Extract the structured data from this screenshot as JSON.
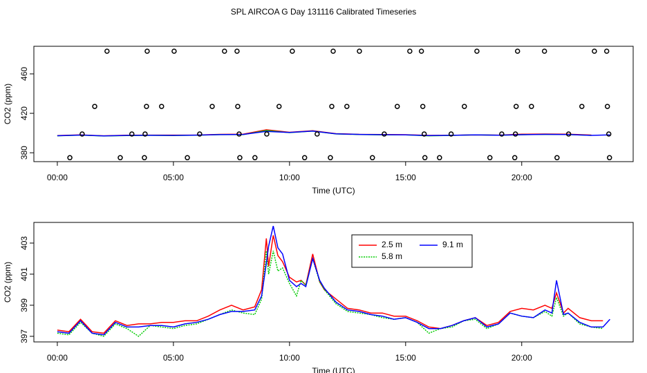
{
  "title": "SPL AIRCOA G  Day 131116  Calibrated Timeseries",
  "chart_data": [
    {
      "type": "scatter",
      "xlabel": "Time (UTC)",
      "ylabel": "CO2 (ppm)",
      "xlim": [
        -1.01,
        24.8
      ],
      "ylim": [
        371,
        488
      ],
      "xticks": [
        {
          "value": 0,
          "label": "00:00"
        },
        {
          "value": 5,
          "label": "05:00"
        },
        {
          "value": 10,
          "label": "10:00"
        },
        {
          "value": 15,
          "label": "15:00"
        },
        {
          "value": 20,
          "label": "20:00"
        }
      ],
      "yticks": [
        380,
        420,
        460
      ],
      "points": {
        "x": [
          2.14,
          3.87,
          5.03,
          7.2,
          7.74,
          10.12,
          11.88,
          13.01,
          15.18,
          15.68,
          18.07,
          19.82,
          20.98,
          23.13,
          23.66,
          1.61,
          3.84,
          4.49,
          6.67,
          7.77,
          9.55,
          11.82,
          12.47,
          14.64,
          15.74,
          17.53,
          19.76,
          20.42,
          22.59,
          23.69,
          1.07,
          3.21,
          3.78,
          6.13,
          7.83,
          9.02,
          11.19,
          14.08,
          15.8,
          16.96,
          19.14,
          19.73,
          22.02,
          23.75,
          0.54,
          2.71,
          3.75,
          5.6,
          7.86,
          8.51,
          10.65,
          11.76,
          13.57,
          15.83,
          16.46,
          18.63,
          19.7,
          21.52,
          23.78
        ],
        "y": [
          483,
          483,
          483,
          483,
          483,
          483,
          483,
          483,
          483,
          483,
          483,
          483,
          483,
          483,
          483,
          427,
          427,
          427,
          427,
          427,
          427,
          427,
          427,
          427,
          427,
          427,
          427,
          427,
          427,
          427,
          399,
          399,
          399,
          399,
          399,
          399,
          399,
          399,
          399,
          399,
          399,
          399,
          399,
          399,
          375,
          375,
          375,
          375,
          375,
          375,
          375,
          375,
          375,
          375,
          375,
          375,
          375,
          375,
          375
        ]
      },
      "x": [
        0,
        1,
        2,
        3,
        4,
        5,
        6,
        7,
        8,
        9,
        10,
        11,
        12,
        13,
        14,
        15,
        16,
        17,
        18,
        19,
        20,
        21,
        22,
        23,
        23.8
      ],
      "series": [
        {
          "color": "#ff0000",
          "values": [
            397.4,
            398.1,
            397.2,
            397.8,
            397.9,
            397.9,
            398.0,
            398.7,
            398.9,
            403.3,
            400.8,
            402.3,
            399.4,
            398.7,
            398.5,
            398.3,
            397.6,
            397.7,
            398.2,
            397.9,
            398.8,
            399.0,
            398.8,
            398.0,
            null
          ]
        },
        {
          "color": "#00cc00",
          "values": [
            397.2,
            397.9,
            397.0,
            397.5,
            397.7,
            397.5,
            397.8,
            398.4,
            398.4,
            402.5,
            400.4,
            402.0,
            399.1,
            398.5,
            398.2,
            398.2,
            397.2,
            397.6,
            398.1,
            397.8,
            398.3,
            398.6,
            398.5,
            397.6,
            null
          ]
        },
        {
          "color": "#0000ff",
          "values": [
            397.3,
            398.0,
            397.1,
            397.6,
            397.7,
            397.6,
            397.9,
            398.4,
            398.6,
            401.7,
            400.6,
            402.0,
            399.2,
            398.6,
            398.3,
            398.2,
            397.5,
            397.7,
            398.2,
            397.8,
            398.3,
            398.7,
            398.5,
            397.6,
            398.1
          ]
        }
      ]
    },
    {
      "type": "line",
      "xlabel": "Time (UTC)",
      "ylabel": "CO2 (ppm)",
      "xlim": [
        -1.01,
        24.8
      ],
      "ylim": [
        396.64,
        404.33
      ],
      "xticks": [
        {
          "value": 0,
          "label": "00:00"
        },
        {
          "value": 5,
          "label": "05:00"
        },
        {
          "value": 10,
          "label": "10:00"
        },
        {
          "value": 15,
          "label": "15:00"
        },
        {
          "value": 20,
          "label": "20:00"
        }
      ],
      "yticks": [
        397,
        399,
        401,
        403
      ],
      "legend": "top",
      "x": [
        0,
        0.5,
        1,
        1.5,
        2,
        2.5,
        3,
        3.5,
        4,
        4.5,
        5,
        5.5,
        6,
        6.5,
        7,
        7.5,
        8,
        8.5,
        8.8,
        9,
        9.1,
        9.3,
        9.5,
        9.7,
        10,
        10.3,
        10.5,
        10.7,
        11,
        11.3,
        11.5,
        12,
        12.5,
        13,
        13.5,
        14,
        14.5,
        15,
        15.5,
        16,
        16.5,
        17,
        17.5,
        18,
        18.5,
        19,
        19.5,
        20,
        20.5,
        21,
        21.3,
        21.5,
        21.8,
        22,
        22.5,
        23,
        23.5,
        23.8
      ],
      "series": [
        {
          "name": "2.5 m",
          "color": "#ff0000",
          "values": [
            397.4,
            397.3,
            398.1,
            397.3,
            397.2,
            398.0,
            397.7,
            397.8,
            397.8,
            397.9,
            397.9,
            398.0,
            398.0,
            398.3,
            398.7,
            399.0,
            398.7,
            398.9,
            400.0,
            403.3,
            401.5,
            403.5,
            402.2,
            401.8,
            400.8,
            400.5,
            400.6,
            400.3,
            402.3,
            400.5,
            400.0,
            399.4,
            398.8,
            398.7,
            398.5,
            398.5,
            398.3,
            398.3,
            398.0,
            397.6,
            397.5,
            397.7,
            398.0,
            398.2,
            397.7,
            397.9,
            398.6,
            398.8,
            398.7,
            399.0,
            398.8,
            399.8,
            398.5,
            398.8,
            398.2,
            398.0,
            398.0,
            null
          ]
        },
        {
          "name": "5.8 m",
          "color": "#00cc00",
          "dash": true,
          "values": [
            397.2,
            397.1,
            397.9,
            397.2,
            397.0,
            397.8,
            397.5,
            397.0,
            397.7,
            397.6,
            397.5,
            397.7,
            397.8,
            398.1,
            398.4,
            398.7,
            398.5,
            398.4,
            399.4,
            402.5,
            401.0,
            402.5,
            401.2,
            401.4,
            400.4,
            399.6,
            400.6,
            400.3,
            402.0,
            400.5,
            400.0,
            399.1,
            398.6,
            398.5,
            398.4,
            398.2,
            398.1,
            398.2,
            397.9,
            397.2,
            397.5,
            397.6,
            398.0,
            398.1,
            397.5,
            397.8,
            398.5,
            398.3,
            398.2,
            398.6,
            398.3,
            399.5,
            398.3,
            398.5,
            397.8,
            397.6,
            397.5,
            null
          ]
        },
        {
          "name": "9.1 m",
          "color": "#0000ff",
          "values": [
            397.3,
            397.2,
            398.0,
            397.2,
            397.1,
            397.9,
            397.6,
            397.6,
            397.7,
            397.7,
            397.6,
            397.8,
            397.9,
            398.1,
            398.4,
            398.6,
            398.6,
            398.7,
            399.6,
            401.7,
            402.8,
            404.1,
            402.7,
            402.3,
            400.6,
            400.2,
            400.4,
            400.2,
            402.0,
            400.6,
            400.1,
            399.2,
            398.7,
            398.6,
            398.4,
            398.3,
            398.1,
            398.2,
            397.9,
            397.5,
            397.5,
            397.7,
            398.0,
            398.2,
            397.6,
            397.8,
            398.5,
            398.3,
            398.2,
            398.7,
            398.5,
            400.6,
            398.4,
            398.5,
            397.9,
            397.6,
            397.6,
            398.1
          ]
        }
      ]
    }
  ]
}
